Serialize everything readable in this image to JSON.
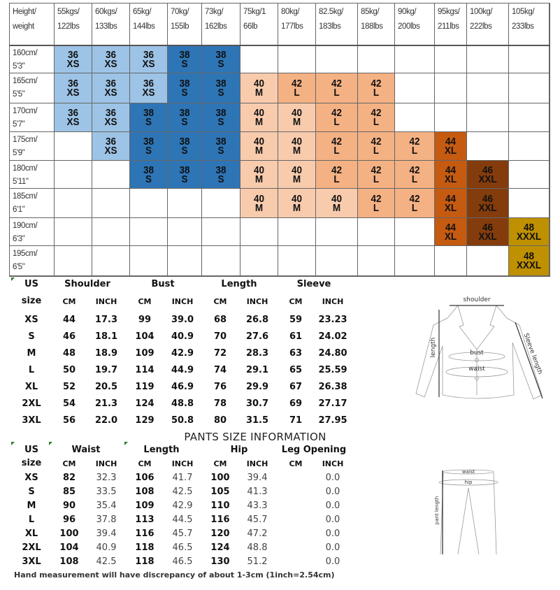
{
  "size_chart": {
    "corner_label": [
      "Height/",
      "weight"
    ],
    "weights": [
      [
        "55kgs/",
        "122lbs"
      ],
      [
        "60kgs/",
        "133lbs"
      ],
      [
        "65kg/",
        "144lbs"
      ],
      [
        "70kg/",
        "155lb"
      ],
      [
        "73kg/",
        "162lbs"
      ],
      [
        "75kg/1",
        "66lb"
      ],
      [
        "80kg/",
        "177lbs"
      ],
      [
        "82.5kg/",
        "183lbs"
      ],
      [
        "85kg/",
        "188lbs"
      ],
      [
        "90kg/",
        "200lbs"
      ],
      [
        "95kgs/",
        "211lbs"
      ],
      [
        "100kg/",
        "222lbs"
      ],
      [
        "105kg/",
        "233lbs"
      ]
    ],
    "heights": [
      [
        "160cm/",
        "5'3\""
      ],
      [
        "165cm/",
        "5'5\""
      ],
      [
        "170cm/",
        "5'7\""
      ],
      [
        "175cm/",
        "5'9\""
      ],
      [
        "180cm/",
        "5'11\""
      ],
      [
        "185cm/",
        "6'1\""
      ],
      [
        "190cm/",
        "6'3\""
      ],
      [
        "195cm/",
        "6'5\""
      ]
    ],
    "sizes": {
      "XS": {
        "number": "36",
        "label": "XS",
        "color": "#9dc3e6"
      },
      "S": {
        "number": "38",
        "label": "S",
        "color": "#2e75b6"
      },
      "M": {
        "number": "40",
        "label": "M",
        "color": "#f8cbad"
      },
      "L": {
        "number": "42",
        "label": "L",
        "color": "#f4b183"
      },
      "XL": {
        "number": "44",
        "label": "XL",
        "color": "#c55a11"
      },
      "XXL": {
        "number": "46",
        "label": "XXL",
        "color": "#843c0c"
      },
      "XXXL": {
        "number": "48",
        "label": "XXXL",
        "color": "#bf9000"
      }
    },
    "grid": [
      [
        "XS",
        "XS",
        "XS",
        "S",
        "S",
        "",
        "",
        "",
        "",
        "",
        "",
        "",
        ""
      ],
      [
        "XS",
        "XS",
        "XS",
        "S",
        "S",
        "M",
        "L",
        "L",
        "L",
        "",
        "",
        "",
        ""
      ],
      [
        "XS",
        "XS",
        "S",
        "S",
        "S",
        "M",
        "M",
        "L",
        "L",
        "",
        "",
        "",
        ""
      ],
      [
        "",
        "XS",
        "S",
        "S",
        "S",
        "M",
        "M",
        "L",
        "L",
        "L",
        "XL",
        "",
        ""
      ],
      [
        "",
        "",
        "S",
        "S",
        "S",
        "M",
        "M",
        "L",
        "L",
        "L",
        "XL",
        "XXL",
        ""
      ],
      [
        "",
        "",
        "",
        "",
        "",
        "M",
        "M",
        "M",
        "L",
        "L",
        "XL",
        "XXL",
        ""
      ],
      [
        "",
        "",
        "",
        "",
        "",
        "",
        "",
        "",
        "",
        "",
        "XL",
        "XXL",
        "XXXL"
      ],
      [
        "",
        "",
        "",
        "",
        "",
        "",
        "",
        "",
        "",
        "",
        "",
        "",
        "XXXL"
      ]
    ]
  },
  "jacket_table": {
    "groups": [
      "US",
      "Shoulder",
      "Bust",
      "Length",
      "Sleeve"
    ],
    "subheaders": [
      "size",
      "CM",
      "INCH",
      "CM",
      "INCH",
      "CM",
      "INCH",
      "CM",
      "INCH"
    ],
    "rows": [
      [
        "XS",
        "44",
        "17.3",
        "99",
        "39.0",
        "68",
        "26.8",
        "59",
        "23.23"
      ],
      [
        "S",
        "46",
        "18.1",
        "104",
        "40.9",
        "70",
        "27.6",
        "61",
        "24.02"
      ],
      [
        "M",
        "48",
        "18.9",
        "109",
        "42.9",
        "72",
        "28.3",
        "63",
        "24.80"
      ],
      [
        "L",
        "50",
        "19.7",
        "114",
        "44.9",
        "74",
        "29.1",
        "65",
        "25.59"
      ],
      [
        "XL",
        "52",
        "20.5",
        "119",
        "46.9",
        "76",
        "29.9",
        "67",
        "26.38"
      ],
      [
        "2XL",
        "54",
        "21.3",
        "124",
        "48.8",
        "78",
        "30.7",
        "69",
        "27.17"
      ],
      [
        "3XL",
        "56",
        "22.0",
        "129",
        "50.8",
        "80",
        "31.5",
        "71",
        "27.95"
      ]
    ]
  },
  "pants_table": {
    "title": "PANTS SIZE INFORMATION",
    "groups": [
      "US",
      "Waist",
      "Length",
      "Hip",
      "Leg Opening"
    ],
    "subheaders": [
      "size",
      "CM",
      "INCH",
      "CM",
      "INCH",
      "CM",
      "INCH",
      "CM",
      "INCH"
    ],
    "rows": [
      [
        "XS",
        "82",
        "32.3",
        "106",
        "41.7",
        "100",
        "39.4",
        "",
        "0.0"
      ],
      [
        "S",
        "85",
        "33.5",
        "108",
        "42.5",
        "105",
        "41.3",
        "",
        "0.0"
      ],
      [
        "M",
        "90",
        "35.4",
        "109",
        "42.9",
        "110",
        "43.3",
        "",
        "0.0"
      ],
      [
        "L",
        "96",
        "37.8",
        "113",
        "44.5",
        "116",
        "45.7",
        "",
        "0.0"
      ],
      [
        "XL",
        "100",
        "39.4",
        "116",
        "45.7",
        "120",
        "47.2",
        "",
        "0.0"
      ],
      [
        "2XL",
        "104",
        "40.9",
        "118",
        "46.5",
        "124",
        "48.8",
        "",
        "0.0"
      ],
      [
        "3XL",
        "108",
        "42.5",
        "118",
        "46.5",
        "130",
        "51.2",
        "",
        "0.0"
      ]
    ],
    "footnote": "Hand measurement will have discrepancy of about 1-3cm (1inch=2.54cm)"
  },
  "diagrams": {
    "jacket": {
      "shoulder": "shoulder",
      "length": "length",
      "bust": "bust",
      "waist": "waist",
      "sleeve": "Sleeve length"
    },
    "pants": {
      "waist": "waist",
      "hip": "hip",
      "length": "pant length"
    }
  }
}
